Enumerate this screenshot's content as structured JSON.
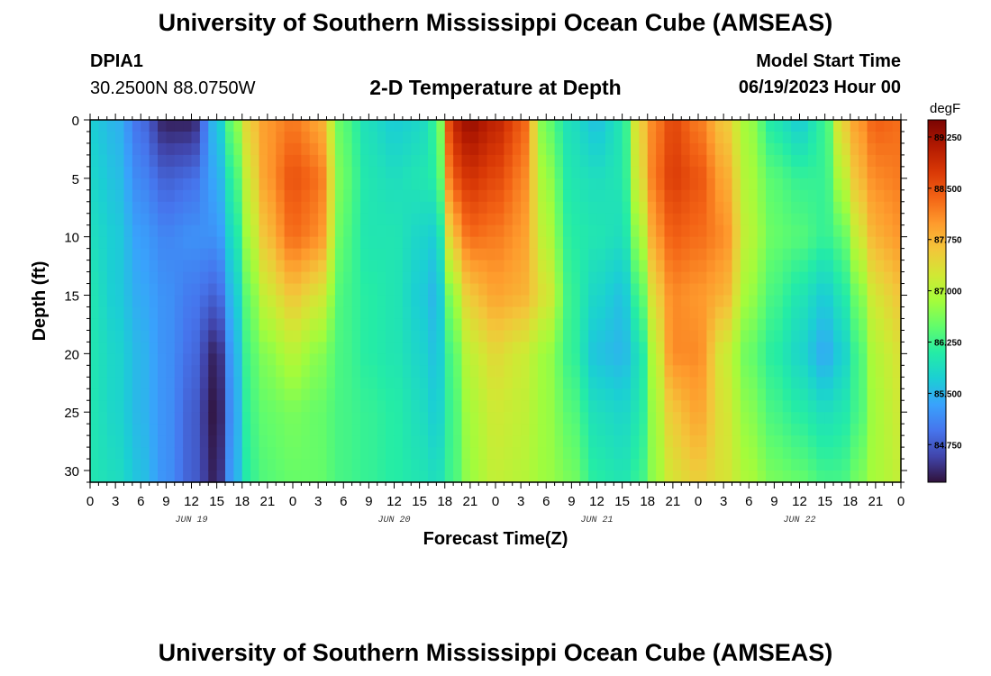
{
  "header": {
    "title": "University of Southern Mississippi Ocean Cube (AMSEAS)",
    "station_id": "DPIA1",
    "coords": "30.2500N  88.0750W",
    "plot_title": "2-D Temperature at Depth",
    "model_label": "Model Start Time",
    "model_time": "06/19/2023 Hour 00",
    "footer_title": "University of Southern Mississippi Ocean Cube (AMSEAS)"
  },
  "chart_data": {
    "type": "heatmap",
    "title": "2-D Temperature at Depth",
    "xlabel": "Forecast Time(Z)",
    "ylabel": "Depth (ft)",
    "xlim": [
      0,
      96
    ],
    "ylim": [
      0,
      31
    ],
    "y_inverted": true,
    "x_ticks": [
      "0",
      "3",
      "6",
      "9",
      "12",
      "15",
      "18",
      "21",
      "0",
      "3",
      "6",
      "9",
      "12",
      "15",
      "18",
      "21",
      "0",
      "3",
      "6",
      "9",
      "12",
      "15",
      "18",
      "21",
      "0",
      "3",
      "6",
      "9",
      "12",
      "15",
      "18",
      "21",
      "0"
    ],
    "day_labels": [
      {
        "label": "JUN 19",
        "hour": 12
      },
      {
        "label": "JUN 20",
        "hour": 36
      },
      {
        "label": "JUN 21",
        "hour": 60
      },
      {
        "label": "JUN 22",
        "hour": 84
      }
    ],
    "y_ticks": [
      0,
      5,
      10,
      15,
      20,
      25,
      30
    ],
    "colorbar": {
      "unit": "degF",
      "min": 84.2,
      "max": 89.5,
      "ticks": [
        "84.750",
        "85.500",
        "86.250",
        "87.000",
        "87.750",
        "88.500",
        "89.250"
      ],
      "colors": [
        "#30123b",
        "#4145ab",
        "#4675ed",
        "#39a2fc",
        "#1bcfd4",
        "#24eca6",
        "#61fc6c",
        "#a4fc3b",
        "#d1e834",
        "#f3c63a",
        "#fe9b2d",
        "#f36315",
        "#d93806",
        "#b11901",
        "#7a0402"
      ]
    },
    "depths": [
      0,
      5,
      10,
      15,
      20,
      25,
      31
    ],
    "columns": [
      {
        "hour": 0,
        "t": [
          85.7,
          85.8,
          85.9,
          86.0,
          86.0,
          86.0,
          86.0
        ]
      },
      {
        "hour": 3,
        "t": [
          85.5,
          85.6,
          85.7,
          85.7,
          85.8,
          85.8,
          85.9
        ]
      },
      {
        "hour": 6,
        "t": [
          84.9,
          85.1,
          85.3,
          85.4,
          85.5,
          85.5,
          85.6
        ]
      },
      {
        "hour": 9,
        "t": [
          84.3,
          84.8,
          85.1,
          85.2,
          85.2,
          85.2,
          85.2
        ]
      },
      {
        "hour": 12,
        "t": [
          84.3,
          84.9,
          85.2,
          85.0,
          84.9,
          84.8,
          84.8
        ]
      },
      {
        "hour": 15,
        "t": [
          85.6,
          85.4,
          85.2,
          84.8,
          84.3,
          84.2,
          84.3
        ]
      },
      {
        "hour": 17,
        "t": [
          86.6,
          86.2,
          85.9,
          85.6,
          85.4,
          85.3,
          85.4
        ]
      },
      {
        "hour": 19,
        "t": [
          87.6,
          87.3,
          87.0,
          86.6,
          86.4,
          86.3,
          86.2
        ]
      },
      {
        "hour": 21,
        "t": [
          88.0,
          88.0,
          87.7,
          87.2,
          86.7,
          86.5,
          86.4
        ]
      },
      {
        "hour": 24,
        "t": [
          88.2,
          88.5,
          88.3,
          87.6,
          87.0,
          86.6,
          86.5
        ]
      },
      {
        "hour": 27,
        "t": [
          87.9,
          88.3,
          88.1,
          87.3,
          86.7,
          86.5,
          86.5
        ]
      },
      {
        "hour": 30,
        "t": [
          86.4,
          86.5,
          86.4,
          86.3,
          86.3,
          86.3,
          86.3
        ]
      },
      {
        "hour": 33,
        "t": [
          85.9,
          86.0,
          86.0,
          86.1,
          86.1,
          86.2,
          86.2
        ]
      },
      {
        "hour": 36,
        "t": [
          85.7,
          85.9,
          86.0,
          86.0,
          86.0,
          86.1,
          86.1
        ]
      },
      {
        "hour": 39,
        "t": [
          85.8,
          86.0,
          85.8,
          85.7,
          85.8,
          85.9,
          86.0
        ]
      },
      {
        "hour": 41,
        "t": [
          86.2,
          86.1,
          85.7,
          85.5,
          85.6,
          85.7,
          85.9
        ]
      },
      {
        "hour": 43,
        "t": [
          89.0,
          88.5,
          87.7,
          86.8,
          86.4,
          86.3,
          86.3
        ]
      },
      {
        "hour": 45,
        "t": [
          89.3,
          88.8,
          88.3,
          87.6,
          87.1,
          86.9,
          86.8
        ]
      },
      {
        "hour": 48,
        "t": [
          89.0,
          88.6,
          88.2,
          87.9,
          87.4,
          87.2,
          87.1
        ]
      },
      {
        "hour": 51,
        "t": [
          88.5,
          88.2,
          88.0,
          87.8,
          87.2,
          87.1,
          87.0
        ]
      },
      {
        "hour": 54,
        "t": [
          86.5,
          86.8,
          87.0,
          87.3,
          86.8,
          86.8,
          86.8
        ]
      },
      {
        "hour": 57,
        "t": [
          85.9,
          86.0,
          86.1,
          86.2,
          86.2,
          86.4,
          86.6
        ]
      },
      {
        "hour": 60,
        "t": [
          85.6,
          85.9,
          86.0,
          85.8,
          85.6,
          85.9,
          86.1
        ]
      },
      {
        "hour": 63,
        "t": [
          86.0,
          86.0,
          85.9,
          85.6,
          85.5,
          85.8,
          86.0
        ]
      },
      {
        "hour": 65,
        "t": [
          87.5,
          87.3,
          86.8,
          86.3,
          85.9,
          86.0,
          86.2
        ]
      },
      {
        "hour": 67,
        "t": [
          88.2,
          88.3,
          88.0,
          87.5,
          87.1,
          86.9,
          86.8
        ]
      },
      {
        "hour": 69,
        "t": [
          88.6,
          88.7,
          88.4,
          88.1,
          88.1,
          87.6,
          87.3
        ]
      },
      {
        "hour": 72,
        "t": [
          88.2,
          88.5,
          88.3,
          88.0,
          88.1,
          87.9,
          87.5
        ]
      },
      {
        "hour": 75,
        "t": [
          87.6,
          87.9,
          88.1,
          87.8,
          87.2,
          87.3,
          87.3
        ]
      },
      {
        "hour": 78,
        "t": [
          86.8,
          86.9,
          87.0,
          86.8,
          86.5,
          86.7,
          86.9
        ]
      },
      {
        "hour": 81,
        "t": [
          86.0,
          86.4,
          86.5,
          86.3,
          86.1,
          86.3,
          86.6
        ]
      },
      {
        "hour": 84,
        "t": [
          85.7,
          86.2,
          86.4,
          86.0,
          85.8,
          86.1,
          86.5
        ]
      },
      {
        "hour": 87,
        "t": [
          86.2,
          86.2,
          86.2,
          85.7,
          85.4,
          85.9,
          86.3
        ]
      },
      {
        "hour": 89,
        "t": [
          87.5,
          87.0,
          86.4,
          86.0,
          85.7,
          86.0,
          86.3
        ]
      },
      {
        "hour": 91,
        "t": [
          88.0,
          87.7,
          87.2,
          86.6,
          86.3,
          86.3,
          86.6
        ]
      },
      {
        "hour": 93,
        "t": [
          88.4,
          88.1,
          87.8,
          87.3,
          87.0,
          86.9,
          86.9
        ]
      },
      {
        "hour": 96,
        "t": [
          88.3,
          88.2,
          88.0,
          87.6,
          87.3,
          87.2,
          87.1
        ]
      }
    ]
  }
}
